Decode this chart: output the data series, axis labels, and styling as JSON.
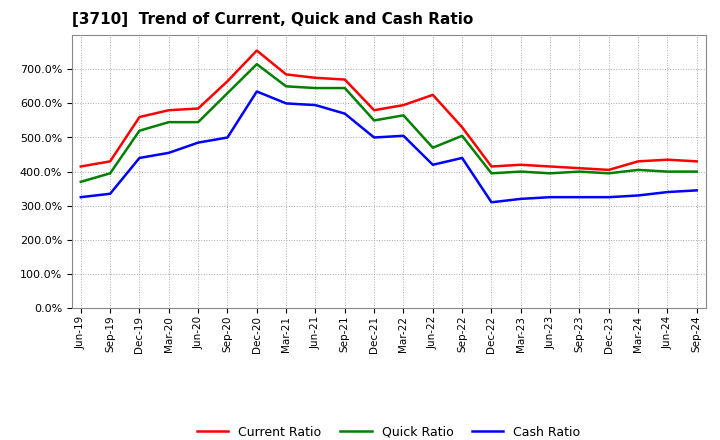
{
  "title": "[3710]  Trend of Current, Quick and Cash Ratio",
  "x_labels": [
    "Jun-19",
    "Sep-19",
    "Dec-19",
    "Mar-20",
    "Jun-20",
    "Sep-20",
    "Dec-20",
    "Mar-21",
    "Jun-21",
    "Sep-21",
    "Dec-21",
    "Mar-22",
    "Jun-22",
    "Sep-22",
    "Dec-22",
    "Mar-23",
    "Jun-23",
    "Sep-23",
    "Dec-23",
    "Mar-24",
    "Jun-24",
    "Sep-24"
  ],
  "current_ratio": [
    4.15,
    4.3,
    5.6,
    5.8,
    5.85,
    6.65,
    7.55,
    6.85,
    6.75,
    6.7,
    5.8,
    5.95,
    6.25,
    5.3,
    4.15,
    4.2,
    4.15,
    4.1,
    4.05,
    4.3,
    4.35,
    4.3
  ],
  "quick_ratio": [
    3.7,
    3.95,
    5.2,
    5.45,
    5.45,
    6.3,
    7.15,
    6.5,
    6.45,
    6.45,
    5.5,
    5.65,
    4.7,
    5.05,
    3.95,
    4.0,
    3.95,
    4.0,
    3.95,
    4.05,
    4.0,
    4.0
  ],
  "cash_ratio": [
    3.25,
    3.35,
    4.4,
    4.55,
    4.85,
    5.0,
    6.35,
    6.0,
    5.95,
    5.7,
    5.0,
    5.05,
    4.2,
    4.4,
    3.1,
    3.2,
    3.25,
    3.25,
    3.25,
    3.3,
    3.4,
    3.45
  ],
  "current_color": "#ff0000",
  "quick_color": "#008000",
  "cash_color": "#0000ff",
  "line_width": 1.8,
  "ylim_min": 0.0,
  "ylim_max": 8.0,
  "ytick_values": [
    0.0,
    1.0,
    2.0,
    3.0,
    4.0,
    5.0,
    6.0,
    7.0
  ],
  "background_color": "#ffffff",
  "plot_bg_color": "#ffffff",
  "grid_color": "#aaaaaa",
  "legend_labels": [
    "Current Ratio",
    "Quick Ratio",
    "Cash Ratio"
  ]
}
